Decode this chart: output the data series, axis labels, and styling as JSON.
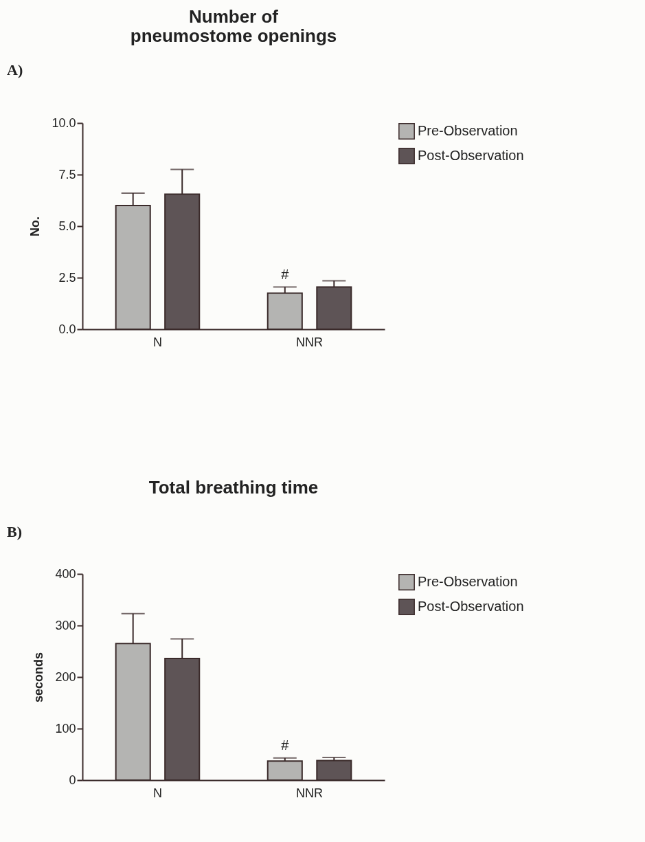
{
  "chart_data": [
    {
      "type": "bar",
      "title": "Number of pneumostome openings",
      "ylabel": "No.",
      "categories": [
        "N",
        "NNR"
      ],
      "series": [
        {
          "name": "Pre-Observation",
          "color": "#b4b4b2",
          "values": [
            6.0,
            1.75
          ],
          "errors": [
            [
              6.0,
              6.6
            ],
            [
              1.75,
              2.05
            ]
          ]
        },
        {
          "name": "Post-Observation",
          "color": "#5e5456",
          "values": [
            6.55,
            2.05
          ],
          "errors": [
            [
              6.55,
              7.75
            ],
            [
              2.05,
              2.35
            ]
          ]
        }
      ],
      "ylim": [
        0,
        10
      ],
      "yticks": [
        {
          "value": 0,
          "label": "0.0"
        },
        2.5,
        {
          "value": 5,
          "label": "5.0"
        },
        7.5,
        {
          "value": 10,
          "label": "10.0"
        }
      ],
      "grid": false,
      "legend": "top right",
      "annotations": [
        "A)",
        "#"
      ]
    },
    {
      "type": "bar",
      "title": "Total breathing time",
      "ylabel": "seconds",
      "categories": [
        "N",
        "NNR"
      ],
      "series": [
        {
          "name": "Pre-Observation",
          "color": "#b4b4b2",
          "values": [
            265,
            37
          ],
          "errors": [
            [
              265,
              323
            ],
            [
              37,
              43
            ]
          ]
        },
        {
          "name": "Post-Observation",
          "color": "#5e5456",
          "values": [
            236,
            38
          ],
          "errors": [
            [
              236,
              274
            ],
            [
              38,
              44
            ]
          ]
        }
      ],
      "ylim": [
        0,
        400
      ],
      "yticks": [
        0,
        100,
        200,
        300,
        400
      ],
      "grid": false,
      "legend": "top right",
      "annotations": [
        "B)",
        "#"
      ]
    }
  ]
}
